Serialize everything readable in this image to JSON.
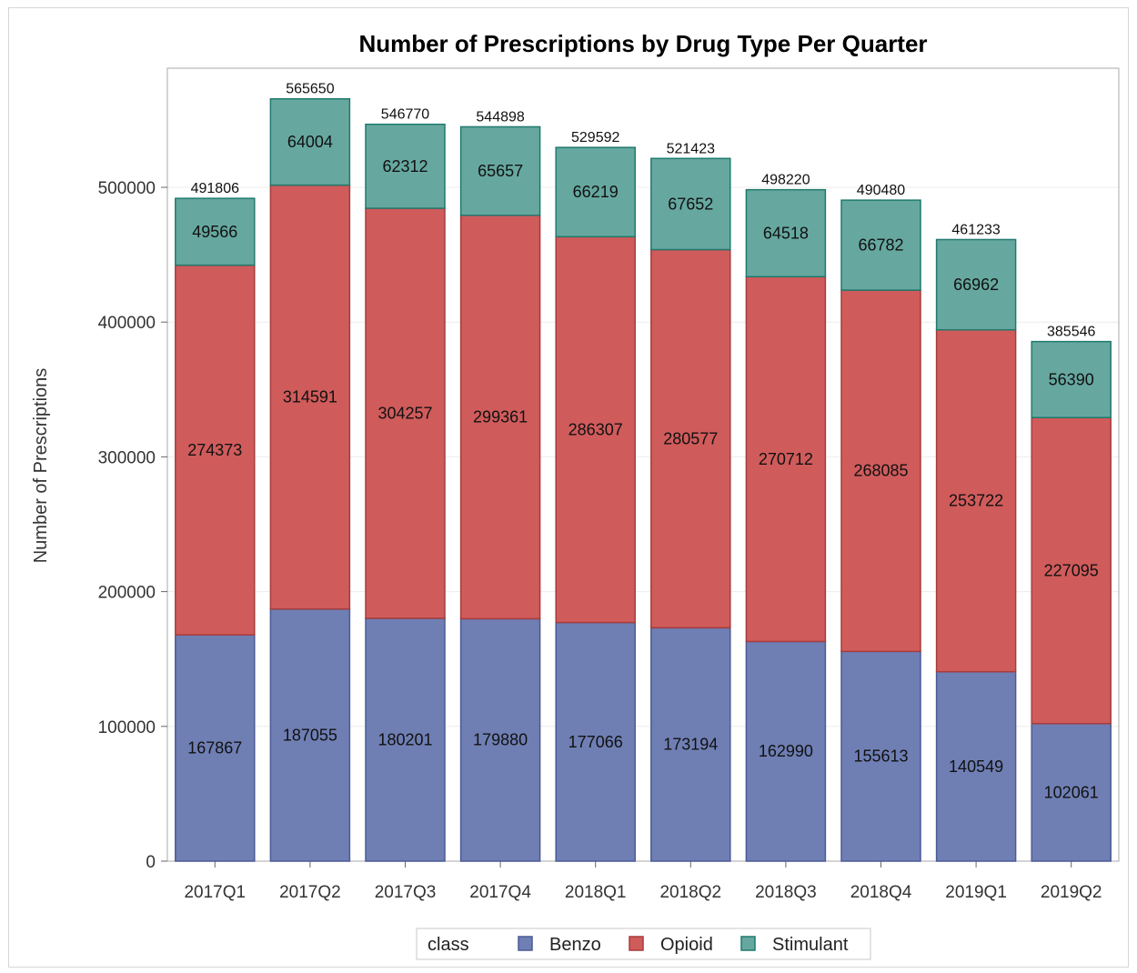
{
  "chart_data": {
    "type": "bar",
    "stacked": true,
    "title": "Number of Prescriptions by Drug Type Per Quarter",
    "xlabel": "",
    "ylabel": "Number of Prescriptions",
    "categories": [
      "2017Q1",
      "2017Q2",
      "2017Q3",
      "2017Q4",
      "2018Q1",
      "2018Q2",
      "2018Q3",
      "2018Q4",
      "2019Q1",
      "2019Q2"
    ],
    "series": [
      {
        "name": "Benzo",
        "color": "#6f7fb4",
        "border": "#4a5a96",
        "values": [
          167867,
          187055,
          180201,
          179880,
          177066,
          173194,
          162990,
          155613,
          140549,
          102061
        ]
      },
      {
        "name": "Opioid",
        "color": "#d05b5b",
        "border": "#a63c3c",
        "values": [
          274373,
          314591,
          304257,
          299361,
          286307,
          280577,
          270712,
          268085,
          253722,
          227095
        ]
      },
      {
        "name": "Stimulant",
        "color": "#66a8a0",
        "border": "#1f7a6e",
        "values": [
          49566,
          64004,
          62312,
          65657,
          66219,
          67652,
          64518,
          66782,
          66962,
          56390
        ]
      }
    ],
    "totals": [
      491806,
      565650,
      546770,
      544898,
      529592,
      521423,
      498220,
      490480,
      461233,
      385546
    ],
    "ylim": [
      0,
      600000
    ],
    "yticks": [
      0,
      100000,
      200000,
      300000,
      400000,
      500000
    ],
    "ytick_labels": [
      "0",
      "100000",
      "200000",
      "300000",
      "400000",
      "500000"
    ],
    "grid": true,
    "legend": {
      "title": "class",
      "placement": "bottom-center"
    }
  }
}
